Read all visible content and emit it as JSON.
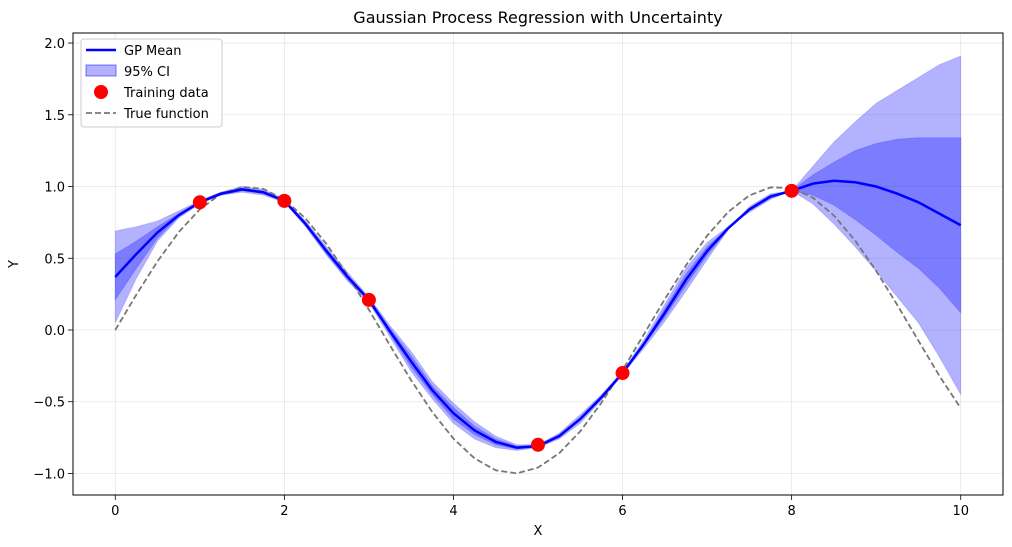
{
  "chart_data": {
    "type": "line",
    "title": "Gaussian Process Regression with Uncertainty",
    "xlabel": "X",
    "ylabel": "Y",
    "xlim": [
      -0.5,
      10.5
    ],
    "ylim": [
      -1.15,
      2.07
    ],
    "xticks": [
      0,
      2,
      4,
      6,
      8,
      10
    ],
    "xtick_labels": [
      "0",
      "2",
      "4",
      "6",
      "8",
      "10"
    ],
    "yticks": [
      -1.0,
      -0.5,
      0.0,
      0.5,
      1.0,
      1.5,
      2.0
    ],
    "ytick_labels": [
      "−1.0",
      "−0.5",
      "0.0",
      "0.5",
      "1.0",
      "1.5",
      "2.0"
    ],
    "grid": true,
    "legend_position": "upper-left",
    "legend": [
      {
        "label": "GP Mean",
        "kind": "line",
        "color": "#0000ff"
      },
      {
        "label": "95% CI",
        "kind": "patch",
        "color": "#0000ff"
      },
      {
        "label": "Training data",
        "kind": "marker",
        "color": "#ff0000"
      },
      {
        "label": "True function",
        "kind": "dashed",
        "color": "#777777"
      }
    ],
    "series": [
      {
        "name": "GP Mean",
        "color": "#0000ff",
        "x": [
          0,
          0.25,
          0.5,
          0.75,
          1.0,
          1.25,
          1.5,
          1.75,
          2.0,
          2.25,
          2.5,
          2.75,
          3.0,
          3.25,
          3.5,
          3.75,
          4.0,
          4.25,
          4.5,
          4.75,
          5.0,
          5.25,
          5.5,
          5.75,
          6.0,
          6.25,
          6.5,
          6.75,
          7.0,
          7.25,
          7.5,
          7.75,
          8.0,
          8.25,
          8.5,
          8.75,
          9.0,
          9.25,
          9.5,
          9.75,
          10.0
        ],
        "y": [
          0.37,
          0.53,
          0.68,
          0.8,
          0.89,
          0.95,
          0.98,
          0.96,
          0.9,
          0.74,
          0.55,
          0.37,
          0.21,
          -0.01,
          -0.22,
          -0.42,
          -0.58,
          -0.7,
          -0.78,
          -0.82,
          -0.81,
          -0.74,
          -0.62,
          -0.47,
          -0.3,
          -0.1,
          0.12,
          0.35,
          0.55,
          0.71,
          0.84,
          0.93,
          0.97,
          1.02,
          1.04,
          1.03,
          1.0,
          0.95,
          0.89,
          0.81,
          0.73
        ]
      },
      {
        "name": "95% CI",
        "color": "#0000ff",
        "x": [
          0,
          0.25,
          0.5,
          0.75,
          1.0,
          1.25,
          1.5,
          1.75,
          2.0,
          2.25,
          2.5,
          2.75,
          3.0,
          3.25,
          3.5,
          3.75,
          4.0,
          4.25,
          4.5,
          4.75,
          5.0,
          5.25,
          5.5,
          5.75,
          6.0,
          6.25,
          6.5,
          6.75,
          7.0,
          7.25,
          7.5,
          7.75,
          8.0,
          8.25,
          8.5,
          8.75,
          9.0,
          9.25,
          9.5,
          9.75,
          10.0
        ],
        "outer_lower": [
          0.05,
          0.36,
          0.62,
          0.78,
          0.88,
          0.94,
          0.96,
          0.94,
          0.89,
          0.72,
          0.52,
          0.34,
          0.19,
          -0.05,
          -0.29,
          -0.48,
          -0.65,
          -0.76,
          -0.82,
          -0.84,
          -0.82,
          -0.76,
          -0.65,
          -0.49,
          -0.31,
          -0.13,
          0.06,
          0.27,
          0.49,
          0.7,
          0.86,
          0.95,
          0.97,
          0.88,
          0.74,
          0.58,
          0.41,
          0.23,
          0.05,
          -0.19,
          -0.45
        ],
        "outer_upper": [
          0.69,
          0.72,
          0.76,
          0.83,
          0.9,
          0.96,
          1.0,
          0.98,
          0.91,
          0.76,
          0.58,
          0.4,
          0.23,
          0.03,
          -0.15,
          -0.36,
          -0.51,
          -0.64,
          -0.74,
          -0.8,
          -0.8,
          -0.72,
          -0.59,
          -0.45,
          -0.29,
          -0.07,
          0.18,
          0.43,
          0.61,
          0.72,
          0.82,
          0.91,
          0.97,
          1.14,
          1.31,
          1.45,
          1.58,
          1.67,
          1.76,
          1.85,
          1.91
        ],
        "inner_lower": [
          0.21,
          0.43,
          0.64,
          0.79,
          0.89,
          0.94,
          0.97,
          0.95,
          0.9,
          0.73,
          0.53,
          0.35,
          0.2,
          -0.03,
          -0.26,
          -0.45,
          -0.62,
          -0.73,
          -0.8,
          -0.83,
          -0.81,
          -0.75,
          -0.63,
          -0.48,
          -0.3,
          -0.11,
          0.09,
          0.31,
          0.52,
          0.7,
          0.85,
          0.94,
          0.97,
          0.94,
          0.87,
          0.77,
          0.66,
          0.54,
          0.43,
          0.29,
          0.12
        ],
        "inner_upper": [
          0.53,
          0.62,
          0.72,
          0.81,
          0.9,
          0.96,
          0.99,
          0.97,
          0.91,
          0.75,
          0.56,
          0.38,
          0.22,
          0.01,
          -0.18,
          -0.39,
          -0.54,
          -0.67,
          -0.76,
          -0.81,
          -0.8,
          -0.73,
          -0.61,
          -0.46,
          -0.29,
          -0.09,
          0.15,
          0.39,
          0.58,
          0.71,
          0.83,
          0.92,
          0.97,
          1.08,
          1.17,
          1.25,
          1.3,
          1.33,
          1.34,
          1.34,
          1.34
        ]
      },
      {
        "name": "Training data",
        "color": "#ff0000",
        "x": [
          1,
          2,
          3,
          5,
          6,
          8
        ],
        "y": [
          0.89,
          0.9,
          0.21,
          -0.8,
          -0.3,
          0.97
        ]
      },
      {
        "name": "True function",
        "color": "#777777",
        "x": [
          0,
          0.25,
          0.5,
          0.75,
          1.0,
          1.25,
          1.5,
          1.75,
          2.0,
          2.25,
          2.5,
          2.75,
          3.0,
          3.25,
          3.5,
          3.75,
          4.0,
          4.25,
          4.5,
          4.75,
          5.0,
          5.25,
          5.5,
          5.75,
          6.0,
          6.25,
          6.5,
          6.75,
          7.0,
          7.25,
          7.5,
          7.75,
          8.0,
          8.25,
          8.5,
          8.75,
          9.0,
          9.25,
          9.5,
          9.75,
          10.0
        ],
        "y": [
          0.0,
          0.247,
          0.479,
          0.682,
          0.841,
          0.949,
          0.997,
          0.984,
          0.909,
          0.778,
          0.598,
          0.382,
          0.141,
          -0.108,
          -0.351,
          -0.572,
          -0.757,
          -0.895,
          -0.978,
          -0.999,
          -0.959,
          -0.859,
          -0.706,
          -0.508,
          -0.279,
          -0.033,
          0.215,
          0.45,
          0.657,
          0.823,
          0.938,
          0.994,
          0.989,
          0.923,
          0.798,
          0.624,
          0.412,
          0.174,
          -0.075,
          -0.322,
          -0.544
        ]
      }
    ]
  }
}
